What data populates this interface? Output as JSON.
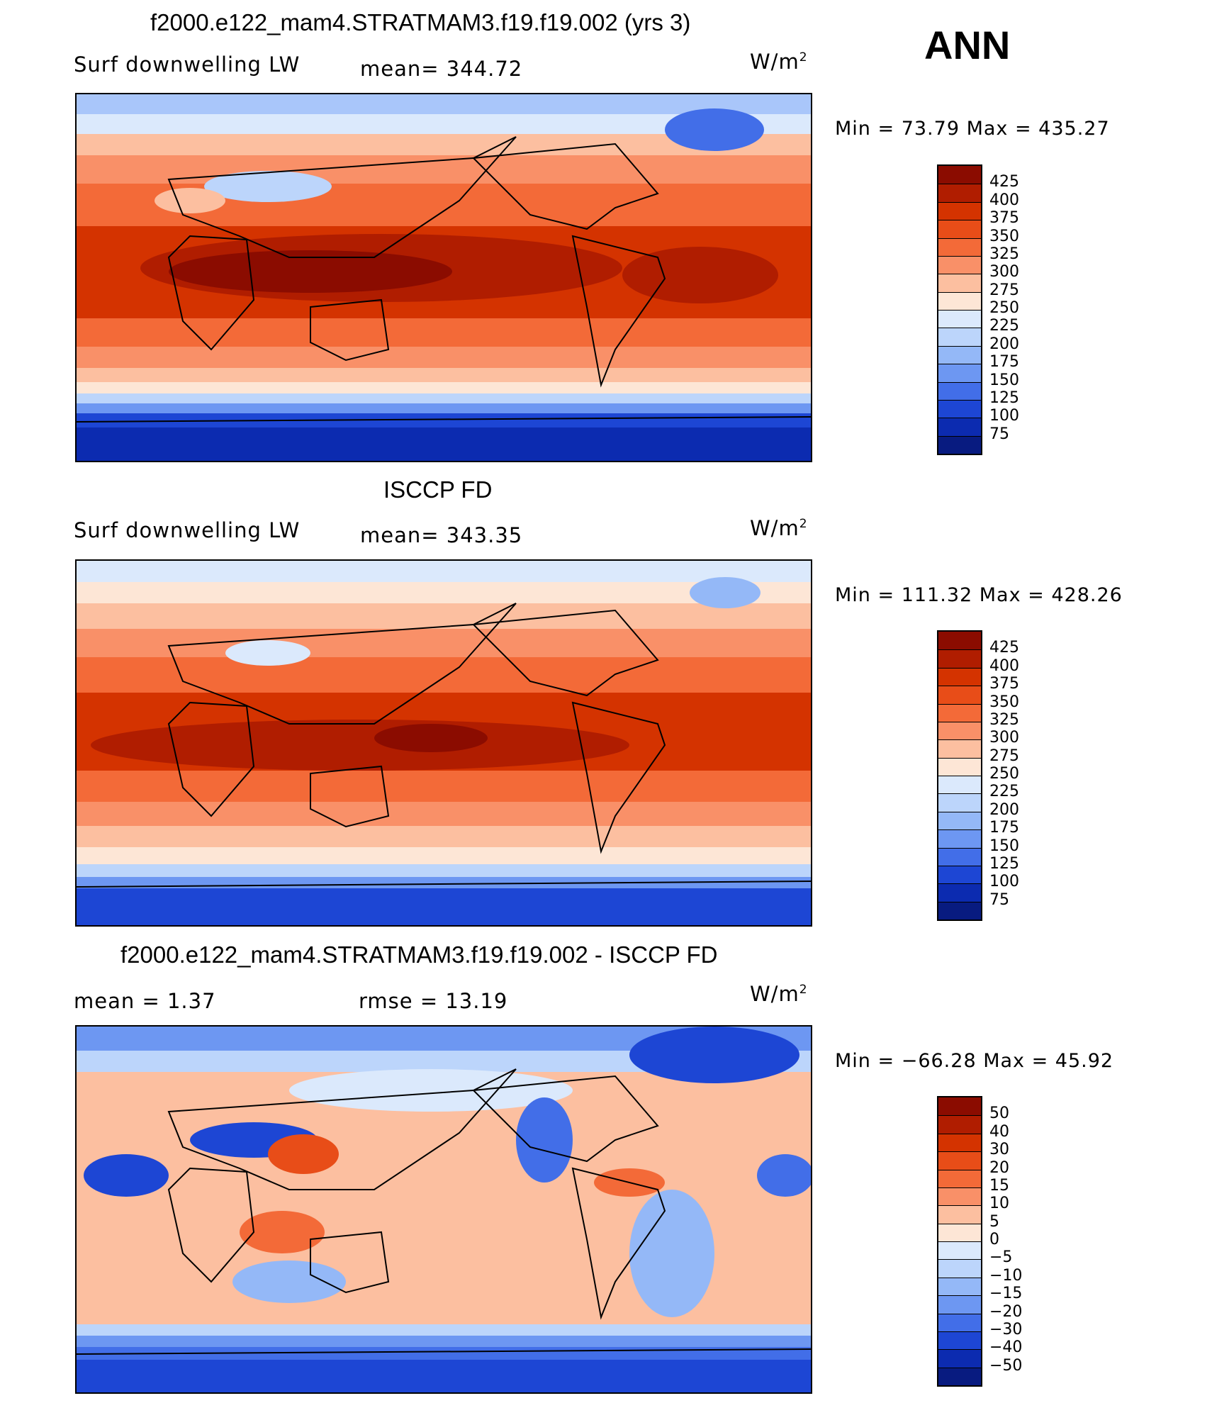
{
  "season": "ANN",
  "panels": [
    {
      "title": "f2000.e122_mam4.STRATMAM3.f19.f19.002 (yrs 3)",
      "left_label": "Surf  downwelling  LW",
      "mid_label": "mean=  344.72",
      "units_base": "W/m",
      "units_exp": "2",
      "minmax": "Min  =     73.79  Max  =  435.27",
      "colorbar": {
        "labels": [
          "425",
          "400",
          "375",
          "350",
          "325",
          "300",
          "275",
          "250",
          "225",
          "200",
          "175",
          "150",
          "125",
          "100",
          "75"
        ],
        "colors": [
          "#8b0c00",
          "#b01d00",
          "#d43300",
          "#e84d18",
          "#f36a38",
          "#f99068",
          "#fcbfa0",
          "#fde6d6",
          "#dbe9fc",
          "#bcd5fb",
          "#94b8f7",
          "#6d97f2",
          "#426ee8",
          "#1d46d4",
          "#0c2bb0",
          "#081b80"
        ]
      },
      "map": {
        "style": "absolute_model"
      }
    },
    {
      "title": "ISCCP FD",
      "left_label": "Surf  downwelling  LW",
      "mid_label": "mean=  343.35",
      "units_base": "W/m",
      "units_exp": "2",
      "minmax": "Min  =  111.32  Max  =  428.26",
      "colorbar": {
        "labels": [
          "425",
          "400",
          "375",
          "350",
          "325",
          "300",
          "275",
          "250",
          "225",
          "200",
          "175",
          "150",
          "125",
          "100",
          "75"
        ],
        "colors": [
          "#8b0c00",
          "#b01d00",
          "#d43300",
          "#e84d18",
          "#f36a38",
          "#f99068",
          "#fcbfa0",
          "#fde6d6",
          "#dbe9fc",
          "#bcd5fb",
          "#94b8f7",
          "#6d97f2",
          "#426ee8",
          "#1d46d4",
          "#0c2bb0",
          "#081b80"
        ]
      },
      "map": {
        "style": "absolute_obs"
      }
    },
    {
      "title": "f2000.e122_mam4.STRATMAM3.f19.f19.002 - ISCCP FD",
      "left_label": "mean  =       1.37",
      "mid_label": "rmse  =      13.19",
      "units_base": "W/m",
      "units_exp": "2",
      "minmax": "Min  =  −66.28  Max  =      45.92",
      "colorbar": {
        "labels": [
          "50",
          "40",
          "30",
          "20",
          "15",
          "10",
          "5",
          "0",
          "−5",
          "−10",
          "−15",
          "−20",
          "−30",
          "−40",
          "−50"
        ],
        "colors": [
          "#8b0c00",
          "#b01d00",
          "#d43300",
          "#e84d18",
          "#f36a38",
          "#f99068",
          "#fcbfa0",
          "#fde6d6",
          "#dbe9fc",
          "#bcd5fb",
          "#94b8f7",
          "#6d97f2",
          "#426ee8",
          "#1d46d4",
          "#0c2bb0",
          "#081b80"
        ]
      },
      "map": {
        "style": "difference"
      }
    }
  ]
}
